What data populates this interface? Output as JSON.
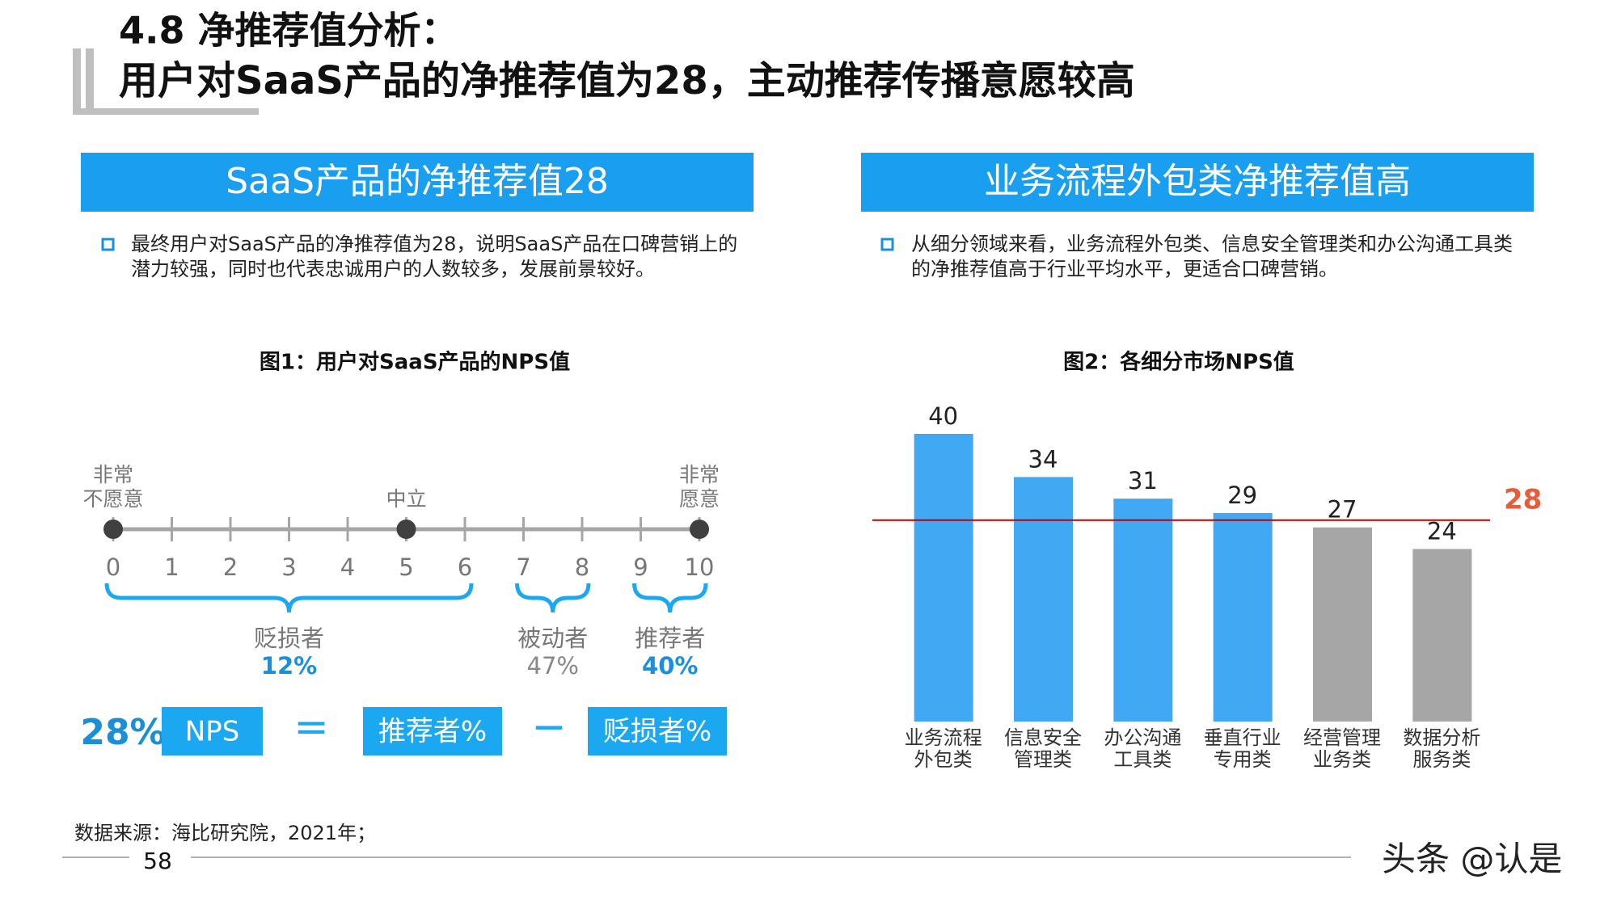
{
  "header": {
    "title_line1": "4.8 净推荐值分析：",
    "title_line2": "用户对SaaS产品的净推荐值为28，主动推荐传播意愿较高"
  },
  "left_panel": {
    "heading": "SaaS产品的净推荐值28",
    "text": "最终用户对SaaS产品的净推荐值为28，说明SaaS产品在口碑营销上的潜力较强，同时也代表忠诚用户的人数较多，发展前景较好。",
    "figure_title": "图1：用户对SaaS产品的NPS值",
    "scale": {
      "ticks": [
        0,
        1,
        2,
        3,
        4,
        5,
        6,
        7,
        8,
        9,
        10
      ],
      "anchors": [
        {
          "value": 0,
          "label_lines": [
            "非常",
            "不愿意"
          ]
        },
        {
          "value": 5,
          "label_lines": [
            "中立"
          ]
        },
        {
          "value": 10,
          "label_lines": [
            "非常",
            "愿意"
          ]
        }
      ],
      "groups": [
        {
          "name": "贬损者",
          "share": "12%",
          "from": 0,
          "to": 6
        },
        {
          "name": "被动者",
          "share": "47%",
          "from": 7,
          "to": 8
        },
        {
          "name": "推荐者",
          "share": "40%",
          "from": 9,
          "to": 10
        }
      ]
    },
    "formula": {
      "result": "28%",
      "nps": "NPS",
      "equals": "=",
      "promoters": "推荐者%",
      "minus": "−",
      "detractors": "贬损者%"
    }
  },
  "right_panel": {
    "heading": "业务流程外包类净推荐值高",
    "text": "从细分领域来看，业务流程外包类、信息安全管理类和办公沟通工具类的净推荐值高于行业平均水平，更适合口碑营销。"
  },
  "chart_data": {
    "type": "bar",
    "title": "图2：各细分市场NPS值",
    "categories": [
      "业务流程外包类",
      "信息安全管理类",
      "办公沟通工具类",
      "垂直行业专用类",
      "经营管理业务类",
      "数据分析服务类"
    ],
    "values": [
      40,
      34,
      31,
      29,
      27,
      24
    ],
    "colors": [
      "#41a9f4",
      "#41a9f4",
      "#41a9f4",
      "#41a9f4",
      "#a6a6a6",
      "#a6a6a6"
    ],
    "ylim": [
      0,
      40
    ],
    "reference_line": {
      "value": 28,
      "color": "#c00000",
      "label_color": "#ea5b3a"
    }
  },
  "footer": {
    "source": "数据来源：海比研究院，2021年；",
    "page": "58",
    "watermark": "头条 @认是"
  }
}
